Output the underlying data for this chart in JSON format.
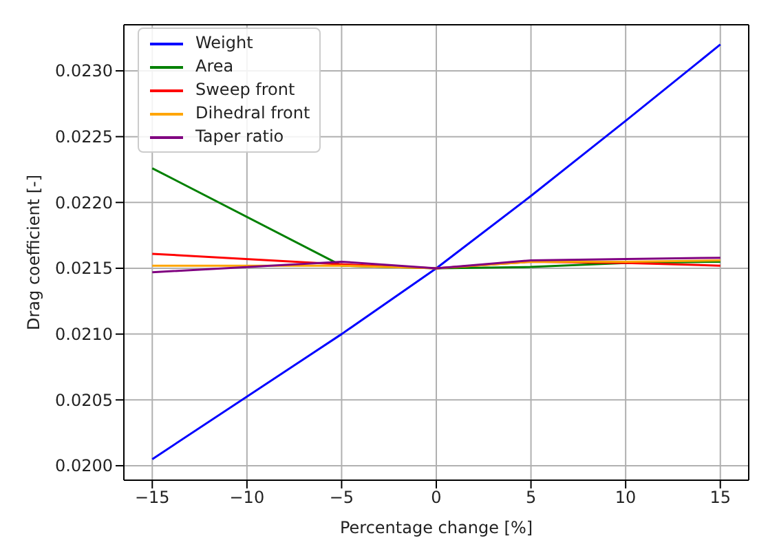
{
  "chart_data": {
    "type": "line",
    "xlabel": "Percentage change [%]",
    "ylabel": "Drag coefficient [-]",
    "x": [
      -15,
      -5,
      0,
      5,
      10,
      15
    ],
    "series": [
      {
        "name": "Weight",
        "color": "#0000ff",
        "values": [
          0.02005,
          0.021,
          0.0215,
          0.02205,
          0.02262,
          0.0232
        ]
      },
      {
        "name": "Area",
        "color": "#008000",
        "values": [
          0.02226,
          0.02152,
          0.0215,
          0.02151,
          0.02154,
          0.02155
        ]
      },
      {
        "name": "Sweep front",
        "color": "#ff0000",
        "values": [
          0.02161,
          0.02153,
          0.0215,
          0.02155,
          0.02154,
          0.02152
        ]
      },
      {
        "name": "Dihedral front",
        "color": "#ffa500",
        "values": [
          0.02152,
          0.02152,
          0.0215,
          0.02155,
          0.02155,
          0.02156
        ]
      },
      {
        "name": "Taper ratio",
        "color": "#800080",
        "values": [
          0.02147,
          0.02155,
          0.0215,
          0.02156,
          0.02157,
          0.02158
        ]
      }
    ],
    "xlim": [
      -16.5,
      16.5
    ],
    "xticks": [
      {
        "value": -15,
        "label": "−15"
      },
      {
        "value": -10,
        "label": "−10"
      },
      {
        "value": -5,
        "label": "−5"
      },
      0,
      5,
      10,
      15
    ],
    "ylim": [
      0.01989,
      0.02335
    ],
    "yticks": [
      {
        "value": 0.02,
        "label": "0.0200"
      },
      {
        "value": 0.0205,
        "label": "0.0205"
      },
      {
        "value": 0.021,
        "label": "0.0210"
      },
      {
        "value": 0.0215,
        "label": "0.0215"
      },
      {
        "value": 0.022,
        "label": "0.0220"
      },
      {
        "value": 0.0225,
        "label": "0.0225"
      },
      {
        "value": 0.023,
        "label": "0.0230"
      }
    ],
    "grid": true,
    "legend": "top left",
    "marker": "none",
    "line_style": "solid"
  }
}
